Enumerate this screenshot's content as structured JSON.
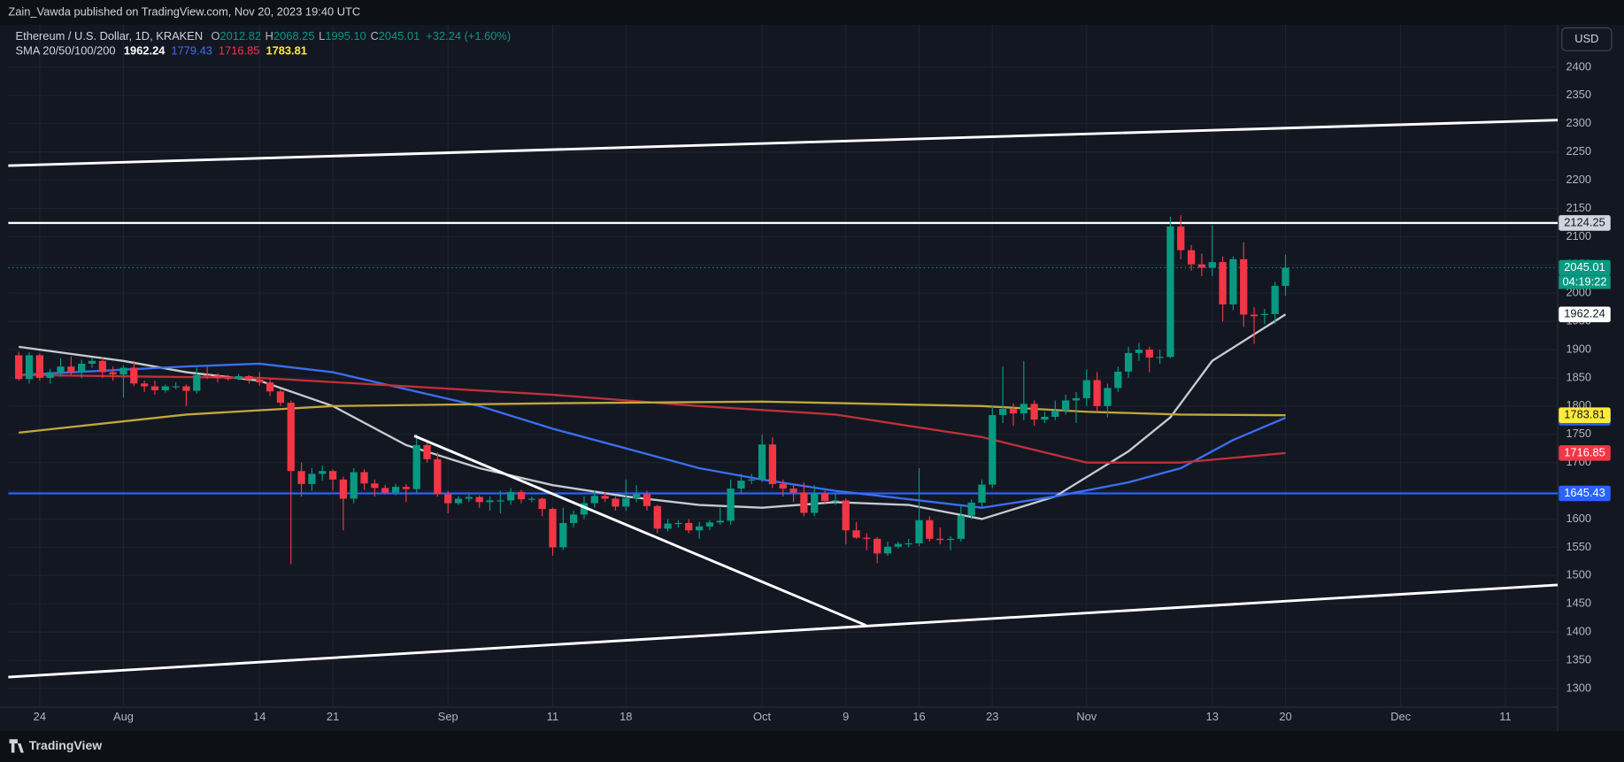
{
  "chart_data": {
    "type": "candlestick",
    "publisher": "Zain_Vawda published on TradingView.com, Nov 20, 2023 19:40 UTC",
    "title": "Ethereum / U.S. Dollar, 1D, KRAKEN",
    "ohlc_legend": {
      "labels": [
        "O",
        "H",
        "L",
        "C"
      ],
      "value_labels": [
        "2012.82",
        "2068.25",
        "1995.10",
        "2045.01"
      ],
      "change": "+32.24 (+1.60%)"
    },
    "currency": "USD",
    "countdown": "04:19:22",
    "brand": "TradingView",
    "up_color": "#089981",
    "down_color": "#f23645",
    "grid": true,
    "x": [
      "2023-07-22",
      "2023-07-23",
      "2023-07-24",
      "2023-07-25",
      "2023-07-26",
      "2023-07-27",
      "2023-07-28",
      "2023-07-29",
      "2023-07-30",
      "2023-07-31",
      "2023-08-01",
      "2023-08-02",
      "2023-08-03",
      "2023-08-04",
      "2023-08-05",
      "2023-08-06",
      "2023-08-07",
      "2023-08-08",
      "2023-08-09",
      "2023-08-10",
      "2023-08-11",
      "2023-08-12",
      "2023-08-13",
      "2023-08-14",
      "2023-08-15",
      "2023-08-16",
      "2023-08-17",
      "2023-08-18",
      "2023-08-19",
      "2023-08-20",
      "2023-08-21",
      "2023-08-22",
      "2023-08-23",
      "2023-08-24",
      "2023-08-25",
      "2023-08-26",
      "2023-08-27",
      "2023-08-28",
      "2023-08-29",
      "2023-08-30",
      "2023-08-31",
      "2023-09-01",
      "2023-09-02",
      "2023-09-03",
      "2023-09-04",
      "2023-09-05",
      "2023-09-06",
      "2023-09-07",
      "2023-09-08",
      "2023-09-09",
      "2023-09-10",
      "2023-09-11",
      "2023-09-12",
      "2023-09-13",
      "2023-09-14",
      "2023-09-15",
      "2023-09-16",
      "2023-09-17",
      "2023-09-18",
      "2023-09-19",
      "2023-09-20",
      "2023-09-21",
      "2023-09-22",
      "2023-09-23",
      "2023-09-24",
      "2023-09-25",
      "2023-09-26",
      "2023-09-27",
      "2023-09-28",
      "2023-09-29",
      "2023-09-30",
      "2023-10-01",
      "2023-10-02",
      "2023-10-03",
      "2023-10-04",
      "2023-10-05",
      "2023-10-06",
      "2023-10-07",
      "2023-10-08",
      "2023-10-09",
      "2023-10-10",
      "2023-10-11",
      "2023-10-12",
      "2023-10-13",
      "2023-10-14",
      "2023-10-15",
      "2023-10-16",
      "2023-10-17",
      "2023-10-18",
      "2023-10-19",
      "2023-10-20",
      "2023-10-21",
      "2023-10-22",
      "2023-10-23",
      "2023-10-24",
      "2023-10-25",
      "2023-10-26",
      "2023-10-27",
      "2023-10-28",
      "2023-10-29",
      "2023-10-30",
      "2023-10-31",
      "2023-11-01",
      "2023-11-02",
      "2023-11-03",
      "2023-11-04",
      "2023-11-05",
      "2023-11-06",
      "2023-11-07",
      "2023-11-08",
      "2023-11-09",
      "2023-11-10",
      "2023-11-11",
      "2023-11-12",
      "2023-11-13",
      "2023-11-14",
      "2023-11-15",
      "2023-11-16",
      "2023-11-17",
      "2023-11-18",
      "2023-11-19",
      "2023-11-20"
    ],
    "open": [
      1890,
      1848,
      1890,
      1850,
      1860,
      1870,
      1860,
      1875,
      1880,
      1860,
      1856,
      1868,
      1840,
      1835,
      1828,
      1835,
      1835,
      1827,
      1855,
      1854,
      1850,
      1848,
      1853,
      1847,
      1842,
      1826,
      1806,
      1685,
      1662,
      1680,
      1685,
      1670,
      1636,
      1683,
      1663,
      1655,
      1647,
      1657,
      1653,
      1731,
      1706,
      1644,
      1628,
      1636,
      1639,
      1630,
      1633,
      1633,
      1648,
      1635,
      1636,
      1618,
      1550,
      1593,
      1608,
      1628,
      1641,
      1636,
      1622,
      1637,
      1644,
      1623,
      1583,
      1592,
      1593,
      1580,
      1587,
      1594,
      1597,
      1654,
      1668,
      1670,
      1732,
      1662,
      1654,
      1647,
      1611,
      1646,
      1632,
      1633,
      1580,
      1567,
      1565,
      1539,
      1551,
      1556,
      1557,
      1598,
      1565,
      1563,
      1565,
      1606,
      1629,
      1661,
      1784,
      1795,
      1787,
      1804,
      1776,
      1781,
      1792,
      1810,
      1814,
      1846,
      1800,
      1832,
      1861,
      1894,
      1900,
      1886,
      1887,
      2118,
      2076,
      2051,
      2045,
      2055,
      1980,
      2060,
      1962,
      1962,
      1963,
      2012.82
    ],
    "high": [
      1896,
      1895,
      1893,
      1866,
      1885,
      1888,
      1882,
      1886,
      1886,
      1870,
      1872,
      1880,
      1845,
      1845,
      1838,
      1842,
      1838,
      1868,
      1870,
      1858,
      1855,
      1857,
      1855,
      1860,
      1848,
      1830,
      1810,
      1700,
      1690,
      1695,
      1688,
      1675,
      1690,
      1688,
      1670,
      1660,
      1662,
      1662,
      1750,
      1735,
      1718,
      1650,
      1640,
      1648,
      1642,
      1640,
      1650,
      1655,
      1652,
      1640,
      1638,
      1620,
      1620,
      1615,
      1640,
      1650,
      1648,
      1640,
      1670,
      1660,
      1650,
      1625,
      1600,
      1598,
      1600,
      1595,
      1598,
      1620,
      1670,
      1680,
      1680,
      1750,
      1745,
      1670,
      1660,
      1665,
      1660,
      1650,
      1645,
      1636,
      1595,
      1575,
      1568,
      1560,
      1560,
      1565,
      1690,
      1605,
      1585,
      1570,
      1625,
      1635,
      1670,
      1800,
      1870,
      1805,
      1880,
      1810,
      1790,
      1810,
      1820,
      1825,
      1865,
      1860,
      1840,
      1870,
      1905,
      1912,
      1905,
      1900,
      2135,
      2138,
      2085,
      2070,
      2120,
      2065,
      2065,
      2090,
      1975,
      1972,
      2020,
      2068.25
    ],
    "low": [
      1845,
      1840,
      1845,
      1840,
      1852,
      1855,
      1850,
      1868,
      1850,
      1845,
      1815,
      1835,
      1825,
      1820,
      1824,
      1830,
      1800,
      1822,
      1848,
      1842,
      1845,
      1846,
      1840,
      1836,
      1818,
      1800,
      1520,
      1640,
      1650,
      1668,
      1650,
      1580,
      1628,
      1652,
      1640,
      1644,
      1642,
      1630,
      1646,
      1700,
      1640,
      1610,
      1625,
      1630,
      1620,
      1615,
      1610,
      1625,
      1628,
      1630,
      1605,
      1535,
      1545,
      1585,
      1600,
      1620,
      1630,
      1615,
      1615,
      1630,
      1615,
      1575,
      1578,
      1585,
      1575,
      1565,
      1580,
      1590,
      1590,
      1645,
      1662,
      1665,
      1655,
      1640,
      1630,
      1605,
      1605,
      1628,
      1625,
      1555,
      1565,
      1545,
      1522,
      1535,
      1548,
      1550,
      1552,
      1560,
      1555,
      1545,
      1560,
      1600,
      1620,
      1655,
      1770,
      1765,
      1775,
      1765,
      1770,
      1775,
      1785,
      1770,
      1800,
      1790,
      1780,
      1825,
      1850,
      1880,
      1860,
      1875,
      1885,
      2060,
      2040,
      2030,
      2030,
      1950,
      1970,
      1940,
      1910,
      1945,
      1945,
      1995.1
    ],
    "close": [
      1848,
      1890,
      1850,
      1860,
      1870,
      1860,
      1875,
      1880,
      1860,
      1856,
      1868,
      1840,
      1835,
      1828,
      1835,
      1835,
      1827,
      1855,
      1854,
      1850,
      1848,
      1853,
      1847,
      1842,
      1826,
      1806,
      1685,
      1662,
      1680,
      1685,
      1670,
      1636,
      1683,
      1663,
      1655,
      1647,
      1657,
      1653,
      1731,
      1706,
      1644,
      1628,
      1636,
      1639,
      1630,
      1633,
      1633,
      1648,
      1635,
      1636,
      1618,
      1550,
      1593,
      1608,
      1628,
      1641,
      1636,
      1622,
      1637,
      1644,
      1623,
      1583,
      1592,
      1593,
      1580,
      1587,
      1594,
      1597,
      1654,
      1668,
      1670,
      1732,
      1662,
      1654,
      1647,
      1611,
      1646,
      1632,
      1633,
      1580,
      1567,
      1565,
      1539,
      1551,
      1556,
      1557,
      1598,
      1565,
      1563,
      1565,
      1606,
      1629,
      1661,
      1784,
      1795,
      1787,
      1804,
      1776,
      1781,
      1792,
      1810,
      1814,
      1846,
      1800,
      1832,
      1861,
      1894,
      1900,
      1886,
      1887,
      2118,
      2076,
      2051,
      2045,
      2055,
      1980,
      2060,
      1962,
      1959,
      1963,
      2013,
      2045.01
    ],
    "indicator": {
      "name": "SMA 20/50/100/200",
      "lines": [
        {
          "color": "#c8cad0",
          "tag_color": "#ffffff",
          "last": 1962.24,
          "x": [
            "2023-07-22",
            "2023-08-01",
            "2023-08-07",
            "2023-08-14",
            "2023-08-21",
            "2023-08-28",
            "2023-09-04",
            "2023-09-11",
            "2023-09-18",
            "2023-09-25",
            "2023-10-01",
            "2023-10-08",
            "2023-10-15",
            "2023-10-22",
            "2023-10-29",
            "2023-11-05",
            "2023-11-09",
            "2023-11-13",
            "2023-11-20"
          ],
          "values": [
            1905,
            1880,
            1860,
            1845,
            1800,
            1731,
            1690,
            1660,
            1640,
            1625,
            1620,
            1630,
            1625,
            1600,
            1640,
            1720,
            1780,
            1880,
            1962.24
          ]
        },
        {
          "color": "#3a6ff0",
          "tag_color": "#2962ff",
          "last": 1779.43,
          "x": [
            "2023-07-22",
            "2023-08-07",
            "2023-08-14",
            "2023-08-21",
            "2023-08-28",
            "2023-09-04",
            "2023-09-11",
            "2023-09-18",
            "2023-09-25",
            "2023-10-01",
            "2023-10-08",
            "2023-10-15",
            "2023-10-22",
            "2023-10-29",
            "2023-11-05",
            "2023-11-10",
            "2023-11-15",
            "2023-11-20"
          ],
          "values": [
            1855,
            1870,
            1875,
            1860,
            1830,
            1800,
            1760,
            1725,
            1690,
            1670,
            1650,
            1635,
            1620,
            1640,
            1665,
            1690,
            1740,
            1779.43
          ]
        },
        {
          "color": "#c0303a",
          "tag_color": "#f23645",
          "last": 1716.85,
          "x": [
            "2023-07-22",
            "2023-08-14",
            "2023-08-28",
            "2023-09-11",
            "2023-09-25",
            "2023-10-08",
            "2023-10-22",
            "2023-11-01",
            "2023-11-10",
            "2023-11-20"
          ],
          "values": [
            1855,
            1850,
            1835,
            1820,
            1800,
            1785,
            1745,
            1700,
            1700,
            1716.85
          ]
        },
        {
          "color": "#c2a73a",
          "tag_color": "#ffeb3b",
          "last": 1783.81,
          "x": [
            "2023-07-22",
            "2023-08-07",
            "2023-08-21",
            "2023-09-11",
            "2023-10-01",
            "2023-10-22",
            "2023-11-01",
            "2023-11-10",
            "2023-11-20"
          ],
          "values": [
            1753,
            1785,
            1800,
            1805,
            1808,
            1800,
            1790,
            1785,
            1783.81
          ]
        }
      ]
    },
    "levels": [
      {
        "value": 2124.25,
        "color": "#ffffff",
        "tag_color": "#d1d4dc"
      },
      {
        "value": 1645.43,
        "color": "#2962ff",
        "tag_color": "#2962ff"
      }
    ],
    "ylim": [
      1267,
      2475
    ],
    "yticks": [
      1300,
      1350,
      1400,
      1450,
      1500,
      1550,
      1600,
      1650,
      1700,
      1750,
      1800,
      1850,
      1900,
      1950,
      2000,
      2050,
      2100,
      2150,
      2200,
      2250,
      2300,
      2350,
      2400
    ],
    "xlim": [
      "2023-07-21",
      "2023-12-16"
    ],
    "xticks": [
      {
        "value": "2023-07-24",
        "label": "24"
      },
      {
        "value": "2023-08-01",
        "label": "Aug"
      },
      {
        "value": "2023-08-14",
        "label": "14"
      },
      {
        "value": "2023-08-21",
        "label": "21"
      },
      {
        "value": "2023-09-01",
        "label": "Sep"
      },
      {
        "value": "2023-09-11",
        "label": "11"
      },
      {
        "value": "2023-09-18",
        "label": "18"
      },
      {
        "value": "2023-10-01",
        "label": "Oct"
      },
      {
        "value": "2023-10-09",
        "label": "9"
      },
      {
        "value": "2023-10-16",
        "label": "16"
      },
      {
        "value": "2023-10-23",
        "label": "23"
      },
      {
        "value": "2023-11-01",
        "label": "Nov"
      },
      {
        "value": "2023-11-13",
        "label": "13"
      },
      {
        "value": "2023-11-20",
        "label": "20"
      },
      {
        "value": "2023-12-01",
        "label": "Dec"
      },
      {
        "value": "2023-12-11",
        "label": "11"
      }
    ]
  }
}
